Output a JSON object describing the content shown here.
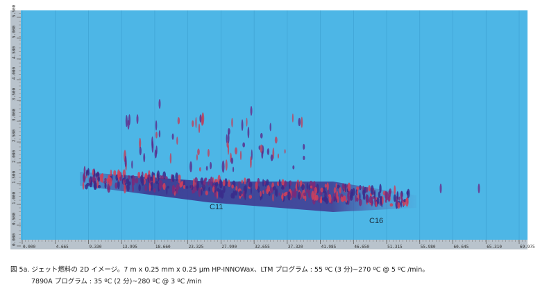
{
  "figure": {
    "x_ticks": [
      "0.000",
      "4.665",
      "9.330",
      "13.995",
      "18.660",
      "23.325",
      "27.990",
      "32.655",
      "37.320",
      "41.985",
      "46.650",
      "51.315",
      "55.980",
      "60.645",
      "65.310",
      "69.975"
    ],
    "y_ticks": [
      "0.000",
      "0.500",
      "1.000",
      "1.500",
      "2.000",
      "2.500",
      "3.000",
      "3.500",
      "4.000",
      "4.500",
      "5.000",
      "5.500"
    ],
    "peak_labels": [
      "C11",
      "C16"
    ]
  },
  "caption": {
    "line1": "図 5a. ジェット燃料の 2D イメージ。7 m x 0.25 mm x 0.25 µm HP-INNOWax、LTM プログラム : 55 ºC (3 分)~270 ºC @ 5 ºC /min。",
    "line2": "7890A プログラム : 35 ºC (2 分)~280 ºC @ 3 ºC /min"
  }
}
